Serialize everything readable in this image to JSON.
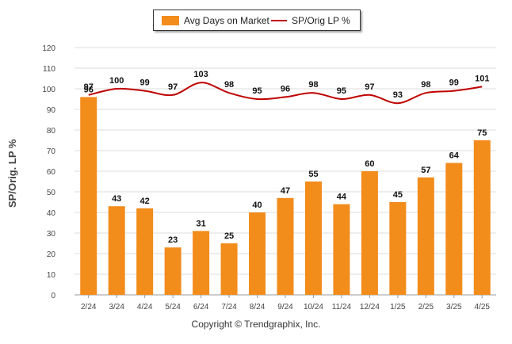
{
  "legend": {
    "bar_label": "Avg Days on Market",
    "line_label": "SP/Orig LP %"
  },
  "y_axis_title": "SP/Orig. LP %",
  "copyright": "Copyright © Trendgraphix, Inc.",
  "colors": {
    "bar": "#F28C1B",
    "line": "#C00000",
    "grid": "#DDDDDD"
  },
  "chart_data": {
    "type": "bar",
    "categories": [
      "2/24",
      "3/24",
      "4/24",
      "5/24",
      "6/24",
      "7/24",
      "8/24",
      "9/24",
      "10/24",
      "11/24",
      "12/24",
      "1/25",
      "2/25",
      "3/25",
      "4/25"
    ],
    "ylim": [
      0,
      120
    ],
    "yticks": [
      0,
      10,
      20,
      30,
      40,
      50,
      60,
      70,
      80,
      90,
      100,
      110,
      120
    ],
    "ylabel": "SP/Orig. LP %",
    "grid": true,
    "legend_position": "top-center",
    "series": [
      {
        "name": "Avg Days on Market",
        "type": "bar",
        "values": [
          96,
          43,
          42,
          23,
          31,
          25,
          40,
          47,
          55,
          44,
          60,
          45,
          57,
          64,
          75
        ]
      },
      {
        "name": "SP/Orig LP %",
        "type": "line",
        "values": [
          97,
          100,
          99,
          97,
          103,
          98,
          95,
          96,
          98,
          95,
          97,
          93,
          98,
          99,
          101
        ]
      }
    ]
  }
}
